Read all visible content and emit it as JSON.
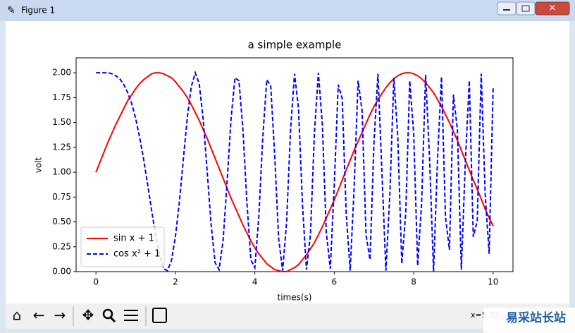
{
  "window": {
    "title": "Figure 1"
  },
  "status": "x=5.92",
  "watermark": "易采站长站",
  "chart_data": {
    "type": "line",
    "title": "a simple example",
    "x_label": "times(s)",
    "y_label": "volt",
    "x": [
      0,
      0.1,
      0.2,
      0.3,
      0.4,
      0.5,
      0.6,
      0.7,
      0.8,
      0.9,
      1,
      1.1,
      1.2,
      1.3,
      1.4,
      1.5,
      1.6,
      1.7,
      1.8,
      1.9,
      2,
      2.1,
      2.2,
      2.3,
      2.4,
      2.5,
      2.6,
      2.7,
      2.8,
      2.9,
      3,
      3.1,
      3.2,
      3.3,
      3.4,
      3.5,
      3.6,
      3.7,
      3.8,
      3.9,
      4,
      4.1,
      4.2,
      4.3,
      4.4,
      4.5,
      4.6,
      4.7,
      4.8,
      4.9,
      5,
      5.1,
      5.2,
      5.3,
      5.4,
      5.5,
      5.6,
      5.7,
      5.8,
      5.9,
      6,
      6.1,
      6.2,
      6.3,
      6.4,
      6.5,
      6.6,
      6.7,
      6.8,
      6.9,
      7,
      7.1,
      7.2,
      7.3,
      7.4,
      7.5,
      7.6,
      7.7,
      7.8,
      7.9,
      8,
      8.1,
      8.2,
      8.3,
      8.4,
      8.5,
      8.6,
      8.7,
      8.8,
      8.9,
      9,
      9.1,
      9.2,
      9.3,
      9.4,
      9.5,
      9.6,
      9.7,
      9.8,
      9.9,
      10
    ],
    "series": [
      {
        "name": "sin x + 1",
        "color": "#ff0000",
        "style": "solid",
        "values": [
          1.0,
          1.1,
          1.2,
          1.3,
          1.39,
          1.48,
          1.56,
          1.64,
          1.72,
          1.78,
          1.84,
          1.89,
          1.93,
          1.96,
          1.99,
          2.0,
          2.0,
          1.99,
          1.97,
          1.95,
          1.91,
          1.86,
          1.81,
          1.75,
          1.68,
          1.6,
          1.52,
          1.43,
          1.34,
          1.24,
          1.14,
          1.04,
          0.94,
          0.84,
          0.74,
          0.65,
          0.56,
          0.47,
          0.39,
          0.31,
          0.24,
          0.18,
          0.13,
          0.08,
          0.05,
          0.02,
          0.01,
          0.0,
          0.0,
          0.02,
          0.04,
          0.07,
          0.12,
          0.17,
          0.23,
          0.29,
          0.37,
          0.45,
          0.54,
          0.63,
          0.72,
          0.82,
          0.92,
          1.02,
          1.12,
          1.22,
          1.31,
          1.4,
          1.49,
          1.58,
          1.66,
          1.73,
          1.79,
          1.85,
          1.9,
          1.94,
          1.97,
          1.99,
          2.0,
          2.0,
          1.99,
          1.97,
          1.94,
          1.9,
          1.85,
          1.8,
          1.73,
          1.66,
          1.58,
          1.5,
          1.41,
          1.32,
          1.22,
          1.12,
          1.02,
          0.92,
          0.83,
          0.73,
          0.63,
          0.54,
          0.46
        ]
      },
      {
        "name": "cos x² + 1",
        "color": "#0000ff",
        "style": "dashed",
        "values": [
          2.0,
          2.0,
          2.0,
          2.0,
          1.99,
          1.97,
          1.94,
          1.88,
          1.8,
          1.69,
          1.54,
          1.35,
          1.13,
          0.88,
          0.62,
          0.37,
          0.17,
          0.03,
          0.01,
          0.11,
          0.35,
          0.7,
          1.13,
          1.55,
          1.86,
          2.0,
          1.89,
          1.53,
          1.01,
          0.47,
          0.09,
          0.02,
          0.31,
          0.89,
          1.53,
          1.95,
          1.92,
          1.43,
          0.7,
          0.12,
          0.04,
          0.55,
          1.35,
          1.93,
          1.87,
          1.17,
          0.33,
          0.01,
          0.5,
          1.43,
          1.99,
          1.64,
          0.67,
          0.02,
          0.37,
          1.39,
          2.0,
          1.48,
          0.39,
          0.03,
          0.87,
          1.88,
          1.74,
          0.59,
          0.01,
          0.84,
          1.92,
          1.62,
          0.37,
          0.12,
          1.3,
          1.99,
          1.0,
          0.01,
          0.78,
          1.95,
          1.35,
          0.08,
          0.59,
          1.92,
          1.39,
          0.06,
          0.7,
          1.98,
          1.13,
          0.0,
          1.13,
          1.96,
          0.55,
          0.22,
          1.78,
          1.43,
          0.02,
          1.1,
          1.92,
          0.35,
          0.51,
          1.99,
          0.78,
          0.18,
          1.86
        ]
      }
    ],
    "xlim": [
      -0.5,
      10.5
    ],
    "ylim": [
      0,
      2.15
    ],
    "xticks": [
      0,
      2,
      4,
      6,
      8,
      10
    ],
    "yticks": [
      {
        "value": 0,
        "label": "0.00"
      },
      {
        "value": 0.25,
        "label": "0.25"
      },
      {
        "value": 0.5,
        "label": "0.50"
      },
      {
        "value": 0.75,
        "label": "0.75"
      },
      {
        "value": 1,
        "label": "1.00"
      },
      {
        "value": 1.25,
        "label": "1.25"
      },
      {
        "value": 1.5,
        "label": "1.50"
      },
      {
        "value": 1.75,
        "label": "1.75"
      },
      {
        "value": 2,
        "label": "2.00"
      }
    ],
    "grid": false,
    "legend": "lower left"
  }
}
